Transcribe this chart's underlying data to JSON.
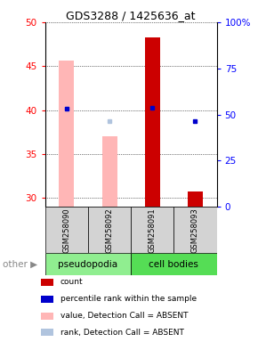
{
  "title": "GDS3288 / 1425636_at",
  "samples": [
    "GSM258090",
    "GSM258092",
    "GSM258091",
    "GSM258093"
  ],
  "ylim_left": [
    29,
    50
  ],
  "ylim_right": [
    0,
    100
  ],
  "yticks_left": [
    30,
    35,
    40,
    45,
    50
  ],
  "yticks_right": [
    0,
    25,
    50,
    75,
    100
  ],
  "bar_values_absent": [
    45.6,
    37.0,
    null,
    null
  ],
  "bar_values_present": [
    null,
    null,
    48.3,
    30.8
  ],
  "blue_dot_values": [
    40.2,
    null,
    40.3,
    38.8
  ],
  "absent_rank_dots": [
    40.2,
    38.8,
    null,
    null
  ],
  "bar_color_absent": "#FFB6B6",
  "bar_color_present": "#CC0000",
  "blue_dot_color": "#0000CC",
  "absent_rank_color": "#B0C4DE",
  "sample_box_color": "#D3D3D3",
  "pseudo_color": "#90EE90",
  "cell_color": "#55DD55",
  "legend_items": [
    {
      "color": "#CC0000",
      "label": "count"
    },
    {
      "color": "#0000CC",
      "label": "percentile rank within the sample"
    },
    {
      "color": "#FFB6B6",
      "label": "value, Detection Call = ABSENT"
    },
    {
      "color": "#B0C4DE",
      "label": "rank, Detection Call = ABSENT"
    }
  ]
}
